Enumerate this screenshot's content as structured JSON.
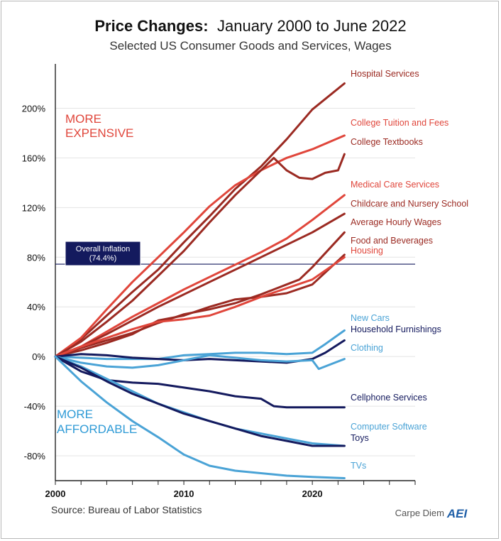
{
  "colors": {
    "dark_red": "#9b2a22",
    "red": "#e0463b",
    "light_blue": "#4aa3d6",
    "navy": "#141a5e",
    "more_expensive": "#e0463b",
    "more_affordable": "#2f9bd6",
    "inflation_box": "#141a5e"
  },
  "chart_data": {
    "type": "line",
    "title": "Price Changes:",
    "subtitle_date": "January 2000 to June 2022",
    "subtitle": "Selected US Consumer Goods and Services, Wages",
    "source": "Source: Bureau of Labor Statistics",
    "brand": "Carpe Diem",
    "brand_logo_text": "AEI",
    "xlim": [
      2000,
      2028
    ],
    "ylim": [
      -100,
      230
    ],
    "x_ticks": [
      2000,
      2010,
      2020
    ],
    "x_tick_labels": [
      "2000",
      "2010",
      "2020"
    ],
    "y_ticks": [
      200,
      160,
      120,
      80,
      40,
      0,
      -40,
      -80
    ],
    "y_tick_labels": [
      "200%",
      "160%",
      "120%",
      "80%",
      "40%",
      "0%",
      "-40%",
      "-80%"
    ],
    "zone_labels": {
      "expensive_line1": "MORE",
      "expensive_line2": "EXPENSIVE",
      "affordable_line1": "MORE",
      "affordable_line2": "AFFORDABLE"
    },
    "reference_line": {
      "value": 74.4,
      "label_line1": "Overall Inflation",
      "label_line2": "(74.4%)"
    },
    "series": [
      {
        "name": "Hospital Services",
        "color": "#9b2a22",
        "x": [
          2000,
          2002,
          2004,
          2006,
          2008,
          2010,
          2012,
          2014,
          2016,
          2018,
          2020,
          2022.5
        ],
        "y": [
          0,
          14,
          33,
          52,
          70,
          92,
          113,
          135,
          153,
          175,
          199,
          220
        ]
      },
      {
        "name": "College Tuition and Fees",
        "color": "#e0463b",
        "x": [
          2000,
          2002,
          2004,
          2006,
          2008,
          2010,
          2012,
          2014,
          2016,
          2018,
          2020,
          2022.5
        ],
        "y": [
          0,
          15,
          38,
          60,
          80,
          100,
          121,
          138,
          150,
          160,
          167,
          178
        ]
      },
      {
        "name": "College Textbooks",
        "color": "#9b2a22",
        "x": [
          2000,
          2002,
          2004,
          2006,
          2008,
          2010,
          2012,
          2014,
          2016,
          2017,
          2018,
          2019,
          2020,
          2021,
          2022,
          2022.5
        ],
        "y": [
          0,
          12,
          28,
          45,
          65,
          85,
          108,
          130,
          150,
          160,
          150,
          144,
          143,
          148,
          150,
          163
        ]
      },
      {
        "name": "Medical Care Services",
        "color": "#e0463b",
        "x": [
          2000,
          2002,
          2004,
          2006,
          2008,
          2010,
          2012,
          2014,
          2016,
          2018,
          2020,
          2022.5
        ],
        "y": [
          0,
          8,
          20,
          32,
          43,
          54,
          64,
          74,
          84,
          95,
          110,
          130
        ]
      },
      {
        "name": "Childcare and Nursery School",
        "color": "#9b2a22",
        "x": [
          2000,
          2002,
          2004,
          2006,
          2008,
          2010,
          2012,
          2014,
          2016,
          2018,
          2020,
          2022.5
        ],
        "y": [
          0,
          8,
          18,
          29,
          40,
          50,
          60,
          70,
          80,
          90,
          100,
          115
        ]
      },
      {
        "name": "Average Hourly Wages",
        "color": "#9b2a22",
        "x": [
          2000,
          2002,
          2004,
          2006,
          2008,
          2010,
          2012,
          2014,
          2016,
          2018,
          2019,
          2020,
          2022.5
        ],
        "y": [
          0,
          7,
          13,
          19,
          27,
          34,
          38,
          43,
          50,
          58,
          62,
          72,
          100
        ]
      },
      {
        "name": "Food and Beverages",
        "color": "#9b2a22",
        "x": [
          2000,
          2002,
          2004,
          2006,
          2008,
          2010,
          2012,
          2014,
          2016,
          2018,
          2020,
          2022.5
        ],
        "y": [
          0,
          5,
          11,
          18,
          29,
          33,
          40,
          46,
          48,
          51,
          58,
          82
        ]
      },
      {
        "name": "Housing",
        "color": "#e0463b",
        "x": [
          2000,
          2002,
          2004,
          2006,
          2008,
          2010,
          2012,
          2014,
          2016,
          2018,
          2020,
          2022.5
        ],
        "y": [
          0,
          8,
          15,
          22,
          28,
          30,
          33,
          40,
          48,
          55,
          62,
          80
        ]
      },
      {
        "name": "New Cars",
        "color": "#4aa3d6",
        "x": [
          2000,
          2002,
          2004,
          2006,
          2008,
          2010,
          2012,
          2014,
          2016,
          2018,
          2020,
          2021,
          2022.5
        ],
        "y": [
          0,
          -1,
          -2,
          -2,
          -2,
          1,
          2,
          3,
          3,
          2,
          3,
          10,
          21
        ]
      },
      {
        "name": "Household Furnishings",
        "color": "#141a5e",
        "x": [
          2000,
          2002,
          2004,
          2006,
          2008,
          2010,
          2012,
          2014,
          2016,
          2018,
          2020,
          2021,
          2022.5
        ],
        "y": [
          0,
          2,
          1,
          -1,
          -2,
          -3,
          -2,
          -3,
          -4,
          -5,
          -2,
          3,
          13
        ]
      },
      {
        "name": "Clothing",
        "color": "#4aa3d6",
        "x": [
          2000,
          2002,
          2004,
          2006,
          2008,
          2010,
          2012,
          2014,
          2016,
          2018,
          2020,
          2020.5,
          2022.5
        ],
        "y": [
          0,
          -5,
          -8,
          -9,
          -7,
          -3,
          1,
          -1,
          -3,
          -4,
          -3,
          -10,
          -2
        ]
      },
      {
        "name": "Cellphone Services",
        "color": "#141a5e",
        "x": [
          2000,
          2002,
          2004,
          2006,
          2008,
          2010,
          2012,
          2014,
          2016,
          2017,
          2018,
          2020,
          2022.5
        ],
        "y": [
          0,
          -12,
          -19,
          -21,
          -22,
          -25,
          -28,
          -32,
          -34,
          -40,
          -41,
          -41,
          -41
        ]
      },
      {
        "name": "Computer Software",
        "color": "#4aa3d6",
        "x": [
          2000,
          2002,
          2004,
          2006,
          2008,
          2010,
          2012,
          2014,
          2016,
          2018,
          2020,
          2022.5
        ],
        "y": [
          0,
          -8,
          -18,
          -28,
          -38,
          -45,
          -52,
          -58,
          -62,
          -66,
          -70,
          -72
        ]
      },
      {
        "name": "Toys",
        "color": "#141a5e",
        "x": [
          2000,
          2002,
          2004,
          2006,
          2008,
          2010,
          2012,
          2014,
          2016,
          2018,
          2020,
          2022.5
        ],
        "y": [
          0,
          -9,
          -20,
          -30,
          -38,
          -46,
          -52,
          -58,
          -64,
          -68,
          -72,
          -72
        ]
      },
      {
        "name": "TVs",
        "color": "#4aa3d6",
        "x": [
          2000,
          2002,
          2004,
          2006,
          2008,
          2010,
          2012,
          2014,
          2016,
          2018,
          2020,
          2022.5
        ],
        "y": [
          0,
          -20,
          -37,
          -52,
          -65,
          -79,
          -88,
          -92,
          -94,
          -96,
          -97,
          -98
        ]
      }
    ]
  }
}
